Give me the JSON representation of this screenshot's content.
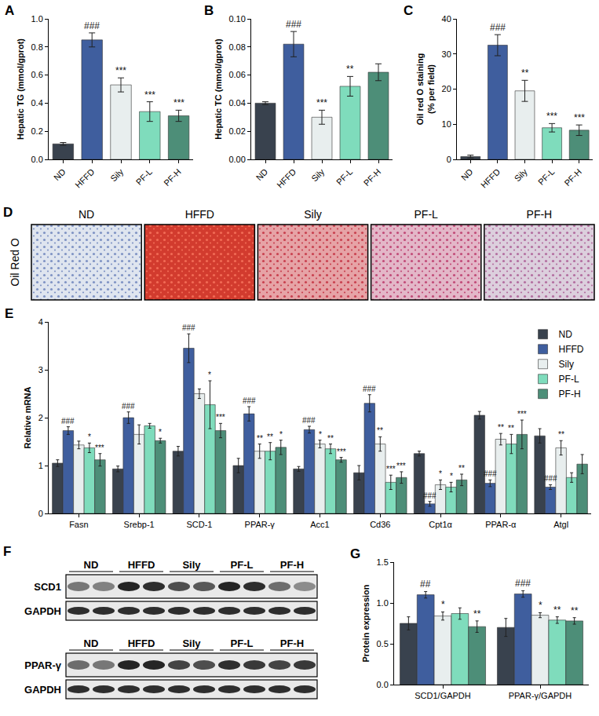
{
  "chart_data": [
    {
      "panel": "A",
      "type": "bar",
      "y_label": "Hepatic TG (mmol/gprot)",
      "categories": [
        "ND",
        "HFFD",
        "Sily",
        "PF-L",
        "PF-H"
      ],
      "values": [
        0.11,
        0.85,
        0.53,
        0.34,
        0.31
      ],
      "errors": [
        0.01,
        0.05,
        0.05,
        0.07,
        0.04
      ],
      "marks": [
        null,
        "###",
        "***",
        "***",
        "***"
      ],
      "colors": [
        "#39424e",
        "#3f5e9e",
        "#e8eeee",
        "#7fdcbc",
        "#4d8e78"
      ],
      "ylim": [
        0,
        1.0
      ],
      "yticks": [
        {
          "value": 0,
          "label": "0.0"
        },
        0.2,
        0.4,
        0.6,
        0.8,
        {
          "value": 1.0,
          "label": "1.0"
        }
      ]
    },
    {
      "panel": "B",
      "type": "bar",
      "y_label": "Hepatic TC (mmol/gprot)",
      "categories": [
        "ND",
        "HFFD",
        "Sily",
        "PF-L",
        "PF-H"
      ],
      "values": [
        0.04,
        0.082,
        0.03,
        0.052,
        0.062
      ],
      "errors": [
        0.001,
        0.009,
        0.005,
        0.007,
        0.006
      ],
      "marks": [
        null,
        "###",
        "***",
        "**",
        null
      ],
      "colors": [
        "#39424e",
        "#3f5e9e",
        "#e8eeee",
        "#7fdcbc",
        "#4d8e78"
      ],
      "ylim": [
        0,
        0.1
      ],
      "yticks": [
        {
          "value": 0,
          "label": "0.00"
        },
        0.02,
        0.04,
        0.06,
        0.08,
        {
          "value": 0.1,
          "label": "0.10"
        }
      ]
    },
    {
      "panel": "C",
      "type": "bar",
      "y_label": "Oil red O staining (% per field)",
      "categories": [
        "ND",
        "HFFD",
        "Sily",
        "PF-L",
        "PF-H"
      ],
      "values": [
        0.8,
        32.5,
        19.5,
        9.0,
        8.3
      ],
      "errors": [
        0.4,
        3.0,
        3.0,
        1.2,
        1.5
      ],
      "marks": [
        null,
        "###",
        "**",
        "***",
        "***"
      ],
      "colors": [
        "#39424e",
        "#3f5e9e",
        "#e8eeee",
        "#7fdcbc",
        "#4d8e78"
      ],
      "ylim": [
        0,
        40
      ],
      "yticks": [
        0,
        10,
        20,
        30,
        40
      ]
    },
    {
      "panel": "E",
      "type": "bar",
      "y_label": "Relative mRNA",
      "categories": [
        "Fasn",
        "Srebp-1",
        "SCD-1",
        "PPAR-γ",
        "Acc1",
        "Cd36",
        "Cpt1α",
        "PPAR-α",
        "Atgl"
      ],
      "series": [
        {
          "name": "ND",
          "color": "#39424e",
          "values": [
            1.05,
            0.93,
            1.3,
            1.0,
            0.93,
            0.85,
            1.25,
            2.05,
            1.62
          ],
          "errors": [
            0.07,
            0.06,
            0.1,
            0.15,
            0.05,
            0.15,
            0.05,
            0.08,
            0.15
          ],
          "marks": [
            null,
            null,
            null,
            null,
            null,
            null,
            null,
            null,
            null
          ]
        },
        {
          "name": "HFFD",
          "color": "#3f5e9e",
          "values": [
            1.73,
            2.0,
            3.45,
            2.08,
            1.75,
            2.3,
            0.2,
            0.63,
            0.55
          ],
          "errors": [
            0.08,
            0.12,
            0.3,
            0.15,
            0.07,
            0.18,
            0.05,
            0.07,
            0.05
          ],
          "marks": [
            "###",
            "###",
            "###",
            "###",
            "###",
            "###",
            "###",
            "###",
            "###"
          ]
        },
        {
          "name": "Sily",
          "color": "#e8eeee",
          "values": [
            1.43,
            1.65,
            2.5,
            1.3,
            1.45,
            1.45,
            0.6,
            1.55,
            1.37
          ],
          "errors": [
            0.08,
            0.2,
            0.1,
            0.15,
            0.08,
            0.15,
            0.1,
            0.12,
            0.15
          ],
          "marks": [
            null,
            null,
            null,
            "**",
            "*",
            "**",
            "*",
            "**",
            "**"
          ]
        },
        {
          "name": "PF-L",
          "color": "#7fdcbc",
          "values": [
            1.37,
            1.83,
            2.27,
            1.3,
            1.35,
            0.65,
            0.55,
            1.45,
            0.75
          ],
          "errors": [
            0.1,
            0.05,
            0.5,
            0.18,
            0.1,
            0.15,
            0.1,
            0.2,
            0.1
          ],
          "marks": [
            "*",
            null,
            "*",
            "**",
            "**",
            "***",
            "*",
            "**",
            null
          ]
        },
        {
          "name": "PF-H",
          "color": "#4d8e78",
          "values": [
            1.12,
            1.52,
            1.73,
            1.38,
            1.12,
            0.75,
            0.7,
            1.65,
            1.03
          ],
          "errors": [
            0.13,
            0.05,
            0.15,
            0.15,
            0.05,
            0.12,
            0.12,
            0.3,
            0.2
          ],
          "marks": [
            "***",
            "*",
            "***",
            "*",
            "***",
            "***",
            "**",
            "***",
            null
          ]
        }
      ],
      "ylim": [
        0,
        4
      ],
      "yticks": [
        0,
        1,
        2,
        3,
        4
      ],
      "legend": "top right"
    },
    {
      "panel": "G",
      "type": "bar",
      "y_label": "Protein expression",
      "categories": [
        "SCD1/GAPDH",
        "PPAR-γ/GAPDH"
      ],
      "series": [
        {
          "color": "#39424e",
          "values": [
            0.75,
            0.7
          ],
          "errors": [
            0.08,
            0.11
          ],
          "marks": [
            null,
            null
          ]
        },
        {
          "color": "#3f5e9e",
          "values": [
            1.1,
            1.11
          ],
          "errors": [
            0.04,
            0.04
          ],
          "marks": [
            "##",
            "###"
          ]
        },
        {
          "color": "#e8eeee",
          "values": [
            0.84,
            0.85
          ],
          "errors": [
            0.05,
            0.03
          ],
          "marks": [
            "*",
            "*"
          ]
        },
        {
          "color": "#7fdcbc",
          "values": [
            0.87,
            0.79
          ],
          "errors": [
            0.07,
            0.04
          ],
          "marks": [
            null,
            "**"
          ]
        },
        {
          "color": "#4d8e78",
          "values": [
            0.71,
            0.78
          ],
          "errors": [
            0.07,
            0.04
          ],
          "marks": [
            "**",
            "**"
          ]
        }
      ],
      "ylim": [
        0,
        1.5
      ],
      "yticks": [
        {
          "value": 0,
          "label": "0.0"
        },
        0.5,
        {
          "value": 1.0,
          "label": "1.0"
        },
        1.5
      ]
    }
  ],
  "figure_panels": [
    {
      "panel": "D",
      "row_label": "Oil Red O",
      "columns": [
        "ND",
        "HFFD",
        "Sily",
        "PF-L",
        "PF-H"
      ]
    },
    {
      "panel": "F",
      "blots": [
        {
          "groups": [
            "ND",
            "HFFD",
            "Sily",
            "PF-L",
            "PF-H"
          ],
          "rows": [
            "SCD1",
            "GAPDH"
          ]
        },
        {
          "groups": [
            "ND",
            "HFFD",
            "Sily",
            "PF-L",
            "PF-H"
          ],
          "rows": [
            "PPAR-γ",
            "GAPDH"
          ]
        }
      ]
    }
  ]
}
